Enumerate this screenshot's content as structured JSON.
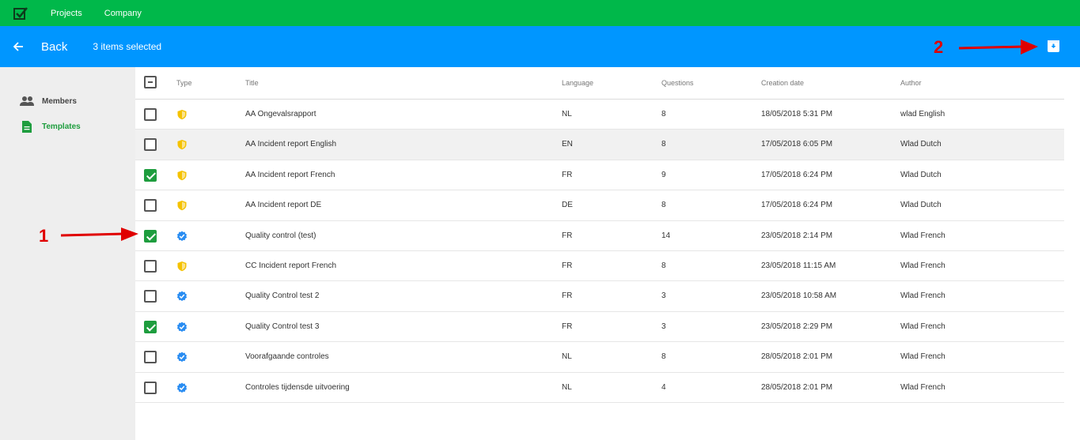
{
  "topbar": {
    "logo_icon": "checkbox-logo-icon",
    "nav": [
      "Projects",
      "Company"
    ]
  },
  "selection_bar": {
    "back_label": "Back",
    "selected_text": "3 items selected",
    "archive_icon": "archive-icon"
  },
  "sidebar": {
    "items": [
      {
        "label": "Members",
        "icon": "people-icon",
        "active": false
      },
      {
        "label": "Templates",
        "icon": "document-icon",
        "active": true
      }
    ]
  },
  "table": {
    "headers": {
      "type": "Type",
      "title": "Title",
      "language": "Language",
      "questions": "Questions",
      "creation_date": "Creation date",
      "author": "Author"
    },
    "rows": [
      {
        "checked": false,
        "type": "shield",
        "title": "AA Ongevalsrapport",
        "language": "NL",
        "questions": "8",
        "date": "18/05/2018 5:31 PM",
        "author": "wlad English",
        "highlighted": false
      },
      {
        "checked": false,
        "type": "shield",
        "title": "AA Incident report English",
        "language": "EN",
        "questions": "8",
        "date": "17/05/2018 6:05 PM",
        "author": "Wlad Dutch",
        "highlighted": true
      },
      {
        "checked": true,
        "type": "shield",
        "title": "AA Incident report French",
        "language": "FR",
        "questions": "9",
        "date": "17/05/2018 6:24 PM",
        "author": "Wlad Dutch",
        "highlighted": false
      },
      {
        "checked": false,
        "type": "shield",
        "title": "AA Incident report DE",
        "language": "DE",
        "questions": "8",
        "date": "17/05/2018 6:24 PM",
        "author": "Wlad Dutch",
        "highlighted": false
      },
      {
        "checked": true,
        "type": "verified",
        "title": "Quality control (test)",
        "language": "FR",
        "questions": "14",
        "date": "23/05/2018 2:14 PM",
        "author": "Wlad French",
        "highlighted": false
      },
      {
        "checked": false,
        "type": "shield",
        "title": "CC Incident report French",
        "language": "FR",
        "questions": "8",
        "date": "23/05/2018 11:15 AM",
        "author": "Wlad French",
        "highlighted": false
      },
      {
        "checked": false,
        "type": "verified",
        "title": "Quality Control test 2",
        "language": "FR",
        "questions": "3",
        "date": "23/05/2018 10:58 AM",
        "author": "Wlad French",
        "highlighted": false
      },
      {
        "checked": true,
        "type": "verified",
        "title": "Quality Control test 3",
        "language": "FR",
        "questions": "3",
        "date": "23/05/2018 2:29 PM",
        "author": "Wlad French",
        "highlighted": false
      },
      {
        "checked": false,
        "type": "verified",
        "title": "Voorafgaande controles",
        "language": "NL",
        "questions": "8",
        "date": "28/05/2018 2:01 PM",
        "author": "Wlad French",
        "highlighted": false
      },
      {
        "checked": false,
        "type": "verified",
        "title": "Controles tijdensde uitvoering",
        "language": "NL",
        "questions": "4",
        "date": "28/05/2018 2:01 PM",
        "author": "Wlad French",
        "highlighted": false
      }
    ]
  },
  "annotations": [
    {
      "number": "1",
      "target": "row-checkbox"
    },
    {
      "number": "2",
      "target": "archive-button"
    }
  ],
  "colors": {
    "topbar": "#00b84a",
    "selection_bar": "#0096ff",
    "sidebar_bg": "#eeeeee",
    "active_green": "#1e9d3e",
    "shield_yellow": "#f5c200",
    "verified_blue": "#2a8df2",
    "annotation_red": "#e00000"
  }
}
